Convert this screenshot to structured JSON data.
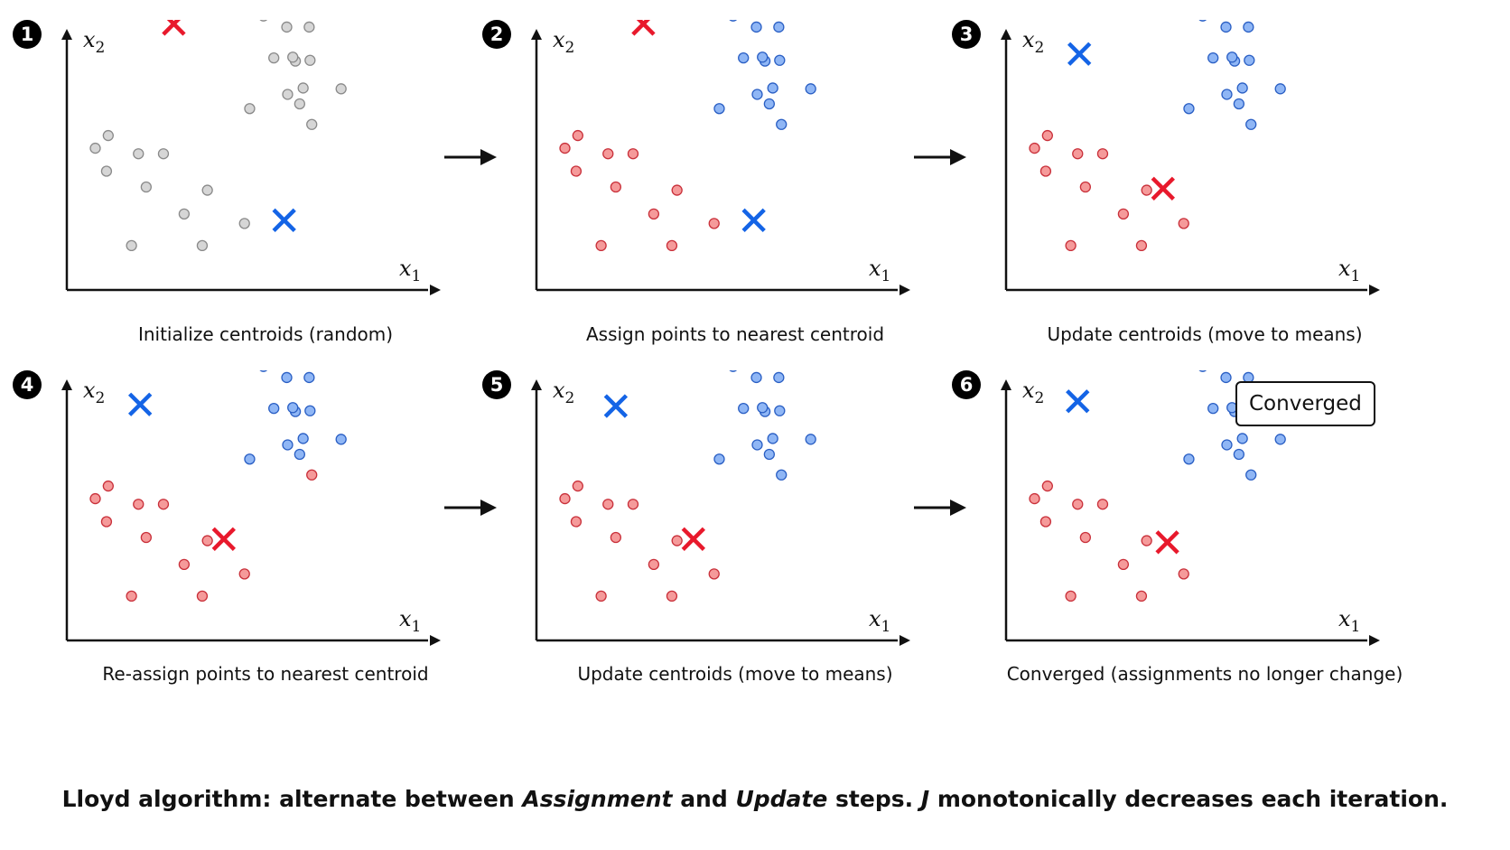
{
  "colors": {
    "red": "#e8192c",
    "blue": "#1464e6",
    "red_fill": "#f59a9a",
    "blue_fill": "#8fb6f5",
    "gray_fill": "#d6d6d6",
    "axis": "#111111"
  },
  "axes": {
    "x_label": "x",
    "x_sub": "1",
    "y_label": "x",
    "y_sub": "2"
  },
  "panels": [
    {
      "number": "1",
      "caption": "Initialize centroids (random)",
      "cluster_a": [
        [
          150,
          46
        ],
        [
          56,
          75
        ],
        [
          130,
          92
        ],
        [
          172,
          83
        ],
        [
          96,
          136
        ],
        [
          172,
          112
        ],
        [
          56,
          157
        ],
        [
          126,
          163
        ],
        [
          84,
          206
        ],
        [
          195,
          48
        ],
        [
          179,
          33
        ]
      ],
      "cluster_b": [
        [
          209,
          284
        ],
        [
          247,
          256
        ],
        [
          293,
          240
        ],
        [
          235,
          270
        ],
        [
          289,
          265
        ],
        [
          332,
          281
        ],
        [
          254,
          318
        ],
        [
          368,
          225
        ],
        [
          346,
          228
        ],
        [
          294,
          262
        ],
        [
          332,
          255
        ],
        [
          229,
          212
        ],
        [
          290,
          282
        ],
        [
          255,
          274
        ]
      ],
      "cluster_a_color": "gray",
      "cluster_b_color": "gray",
      "centroid_a": [
        336,
        124
      ],
      "centroid_b": [
        88,
        252
      ]
    },
    {
      "number": "2",
      "caption": "Assign points to nearest centroid",
      "cluster_a": [
        [
          150,
          46
        ],
        [
          56,
          75
        ],
        [
          130,
          92
        ],
        [
          172,
          83
        ],
        [
          96,
          136
        ],
        [
          172,
          112
        ],
        [
          56,
          157
        ],
        [
          126,
          163
        ],
        [
          84,
          206
        ],
        [
          195,
          48
        ],
        [
          179,
          33
        ]
      ],
      "cluster_b": [
        [
          209,
          284
        ],
        [
          247,
          256
        ],
        [
          293,
          240
        ],
        [
          235,
          270
        ],
        [
          289,
          265
        ],
        [
          332,
          281
        ],
        [
          254,
          318
        ],
        [
          368,
          225
        ],
        [
          346,
          228
        ],
        [
          294,
          262
        ],
        [
          332,
          255
        ],
        [
          229,
          212
        ],
        [
          290,
          282
        ],
        [
          255,
          274
        ]
      ],
      "cluster_a_color": "red",
      "cluster_b_color": "blue",
      "centroid_a": [
        336,
        124
      ],
      "centroid_b": [
        88,
        252
      ]
    },
    {
      "number": "3",
      "caption": "Update centroids (move to means)",
      "cluster_a": [
        [
          150,
          46
        ],
        [
          56,
          75
        ],
        [
          130,
          92
        ],
        [
          172,
          83
        ],
        [
          96,
          136
        ],
        [
          172,
          112
        ],
        [
          56,
          157
        ],
        [
          126,
          163
        ],
        [
          84,
          206
        ],
        [
          195,
          48
        ],
        [
          179,
          33
        ]
      ],
      "cluster_b": [
        [
          209,
          284
        ],
        [
          247,
          256
        ],
        [
          293,
          240
        ],
        [
          235,
          270
        ],
        [
          289,
          265
        ],
        [
          332,
          281
        ],
        [
          254,
          318
        ],
        [
          368,
          225
        ],
        [
          346,
          228
        ],
        [
          294,
          262
        ],
        [
          332,
          255
        ],
        [
          229,
          212
        ],
        [
          290,
          282
        ],
        [
          255,
          274
        ]
      ],
      "cluster_a_color": "red",
      "cluster_b_color": "blue",
      "centroid_a": [
        128,
        182
      ],
      "centroid_b": [
        298,
        85
      ]
    },
    {
      "number": "4",
      "caption": "Re-assign points to nearest centroid",
      "cluster_a": [
        [
          150,
          46
        ],
        [
          56,
          75
        ],
        [
          130,
          92
        ],
        [
          172,
          83
        ],
        [
          96,
          136
        ],
        [
          172,
          112
        ],
        [
          56,
          157
        ],
        [
          126,
          163
        ],
        [
          84,
          206
        ],
        [
          195,
          48
        ],
        [
          179,
          33
        ],
        [
          209,
          284
        ]
      ],
      "cluster_b": [
        [
          247,
          256
        ],
        [
          293,
          240
        ],
        [
          235,
          270
        ],
        [
          289,
          265
        ],
        [
          332,
          281
        ],
        [
          254,
          318
        ],
        [
          368,
          225
        ],
        [
          346,
          228
        ],
        [
          294,
          262
        ],
        [
          332,
          255
        ],
        [
          229,
          212
        ],
        [
          290,
          282
        ],
        [
          255,
          274
        ]
      ],
      "cluster_a_color": "red",
      "cluster_b_color": "blue",
      "centroid_a": [
        128,
        182
      ],
      "centroid_b": [
        298,
        85
      ]
    },
    {
      "number": "5",
      "caption": "Update centroids (move to means)",
      "cluster_a": [
        [
          150,
          46
        ],
        [
          56,
          75
        ],
        [
          130,
          92
        ],
        [
          172,
          83
        ],
        [
          96,
          136
        ],
        [
          172,
          112
        ],
        [
          56,
          157
        ],
        [
          126,
          163
        ],
        [
          84,
          206
        ],
        [
          195,
          48
        ],
        [
          179,
          33
        ]
      ],
      "cluster_b": [
        [
          209,
          284
        ],
        [
          247,
          256
        ],
        [
          293,
          240
        ],
        [
          235,
          270
        ],
        [
          289,
          265
        ],
        [
          332,
          281
        ],
        [
          254,
          318
        ],
        [
          368,
          225
        ],
        [
          346,
          228
        ],
        [
          294,
          262
        ],
        [
          332,
          255
        ],
        [
          229,
          212
        ],
        [
          290,
          282
        ],
        [
          255,
          274
        ]
      ],
      "cluster_a_color": "red",
      "cluster_b_color": "blue",
      "centroid_a": [
        128,
        182
      ],
      "centroid_b": [
        296,
        92
      ]
    },
    {
      "number": "6",
      "caption": "Converged (assignments no longer change)",
      "cluster_a": [
        [
          150,
          46
        ],
        [
          56,
          75
        ],
        [
          130,
          92
        ],
        [
          172,
          83
        ],
        [
          96,
          136
        ],
        [
          172,
          112
        ],
        [
          56,
          157
        ],
        [
          126,
          163
        ],
        [
          84,
          206
        ],
        [
          195,
          48
        ],
        [
          179,
          33
        ]
      ],
      "cluster_b": [
        [
          209,
          284
        ],
        [
          247,
          256
        ],
        [
          293,
          240
        ],
        [
          235,
          270
        ],
        [
          289,
          265
        ],
        [
          332,
          281
        ],
        [
          254,
          318
        ],
        [
          368,
          225
        ],
        [
          346,
          228
        ],
        [
          294,
          262
        ],
        [
          332,
          255
        ],
        [
          229,
          212
        ],
        [
          290,
          282
        ],
        [
          255,
          274
        ]
      ],
      "cluster_a_color": "red",
      "cluster_b_color": "blue",
      "centroid_a": [
        124,
        187
      ],
      "centroid_b": [
        302,
        83
      ],
      "badge": "Converged"
    }
  ],
  "footer": {
    "part1": "Lloyd algorithm: alternate between ",
    "em1": "Assignment",
    "part2": " and ",
    "em2": "Update",
    "part3": " steps. ",
    "em3": "J",
    "part4": " monotonically decreases each iteration."
  }
}
